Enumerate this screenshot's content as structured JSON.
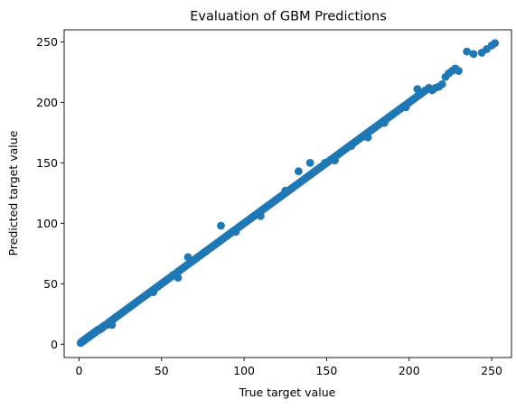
{
  "chart_data": {
    "type": "scatter",
    "title": "Evaluation of GBM Predictions",
    "xlabel": "True target value",
    "ylabel": "Predicted target value",
    "xlim": [
      -9,
      262
    ],
    "ylim": [
      -11,
      260
    ],
    "xticks": [
      0,
      50,
      100,
      150,
      200,
      250
    ],
    "yticks": [
      0,
      50,
      100,
      150,
      200,
      250
    ],
    "xtick_labels": [
      "0",
      "50",
      "100",
      "150",
      "200",
      "250"
    ],
    "ytick_labels": [
      "0",
      "50",
      "100",
      "150",
      "200",
      "250"
    ],
    "grid": false,
    "legend": "none",
    "marker_color": "#1f77b4",
    "points": {
      "x": [
        1,
        1.5,
        2,
        2.5,
        3,
        3.5,
        4,
        4.5,
        5,
        5.5,
        6,
        6.5,
        7,
        7.5,
        8,
        8.5,
        9,
        9.5,
        10,
        10.5,
        11,
        11.5,
        12,
        12.5,
        13,
        13.5,
        14,
        14.5,
        15,
        16,
        17,
        18,
        19,
        20,
        21,
        22,
        23,
        24,
        25,
        26,
        27,
        28,
        29,
        30,
        31,
        32,
        33,
        34,
        35,
        36,
        37,
        38,
        39,
        40,
        41,
        42,
        43,
        44,
        45,
        46,
        47,
        48,
        49,
        50,
        51,
        52,
        53,
        54,
        55,
        56,
        57,
        58,
        59,
        60,
        61,
        62,
        63,
        64,
        65,
        66,
        67,
        68,
        69,
        70,
        71,
        72,
        73,
        74,
        75,
        76,
        77,
        78,
        79,
        80,
        81,
        82,
        83,
        84,
        85,
        86,
        87,
        88,
        89,
        90,
        91,
        92,
        93,
        94,
        95,
        96,
        97,
        98,
        99,
        100,
        101,
        102,
        103,
        104,
        105,
        106,
        107,
        108,
        109,
        110,
        111,
        112,
        113,
        114,
        115,
        116,
        117,
        118,
        119,
        120,
        121,
        122,
        123,
        124,
        125,
        126,
        127,
        128,
        129,
        130,
        131,
        132,
        133,
        134,
        135,
        136,
        137,
        138,
        139,
        140,
        141,
        142,
        143,
        144,
        145,
        146,
        147,
        148,
        149,
        150,
        151,
        152,
        153,
        154,
        155,
        156,
        157,
        158,
        159,
        160,
        161,
        162,
        163,
        164,
        165,
        166,
        167,
        168,
        169,
        170,
        171,
        172,
        173,
        174,
        175,
        176,
        177,
        178,
        179,
        180,
        181,
        182,
        183,
        184,
        185,
        186,
        187,
        188,
        189,
        190,
        191,
        192,
        193,
        194,
        195,
        196,
        197,
        198,
        199,
        200,
        201,
        202,
        203,
        204,
        205,
        206,
        207,
        208,
        209,
        210,
        212,
        214,
        216,
        218,
        220,
        222,
        224,
        226,
        228,
        235,
        239,
        244,
        247,
        250,
        252,
        66,
        86,
        133,
        140,
        149,
        165,
        20,
        60,
        110,
        175,
        230,
        45,
        95,
        125,
        155,
        185,
        198,
        205
      ],
      "y": [
        1,
        2,
        2,
        3,
        3,
        4,
        4,
        5,
        5,
        6,
        6,
        7,
        7,
        8,
        8,
        9,
        9,
        10,
        10,
        11,
        11,
        12,
        12,
        12,
        13,
        13,
        14,
        14,
        15,
        16,
        16,
        18,
        19,
        20,
        21,
        22,
        23,
        24,
        25,
        26,
        27,
        28,
        29,
        30,
        31,
        32,
        33,
        34,
        35,
        36,
        37,
        38,
        39,
        40,
        41,
        42,
        43,
        44,
        45,
        46,
        47,
        48,
        49,
        50,
        51,
        52,
        53,
        54,
        55,
        56,
        57,
        58,
        58,
        60,
        61,
        62,
        63,
        64,
        65,
        66,
        67,
        68,
        69,
        70,
        71,
        72,
        73,
        74,
        75,
        76,
        77,
        78,
        79,
        80,
        81,
        82,
        83,
        84,
        85,
        86,
        87,
        88,
        89,
        90,
        91,
        92,
        93,
        94,
        95,
        96,
        97,
        98,
        99,
        100,
        101,
        102,
        103,
        104,
        105,
        106,
        107,
        108,
        109,
        110,
        111,
        112,
        113,
        114,
        115,
        116,
        117,
        118,
        119,
        120,
        121,
        122,
        123,
        124,
        125,
        126,
        127,
        128,
        129,
        130,
        131,
        132,
        133,
        134,
        135,
        136,
        137,
        138,
        139,
        140,
        141,
        142,
        143,
        144,
        145,
        146,
        147,
        148,
        149,
        150,
        151,
        152,
        153,
        154,
        155,
        156,
        157,
        158,
        159,
        160,
        161,
        162,
        163,
        164,
        165,
        166,
        167,
        168,
        169,
        170,
        171,
        172,
        173,
        174,
        175,
        176,
        177,
        178,
        179,
        180,
        181,
        182,
        183,
        184,
        185,
        186,
        187,
        188,
        189,
        190,
        191,
        192,
        193,
        194,
        195,
        196,
        197,
        198,
        199,
        200,
        201,
        202,
        203,
        204,
        205,
        206,
        207,
        208,
        209,
        210,
        212,
        210,
        212,
        213,
        215,
        221,
        224,
        226,
        228,
        242,
        240,
        241,
        244,
        247,
        249,
        72,
        98,
        143,
        150,
        150,
        164,
        16,
        55,
        106,
        171,
        226,
        43,
        93,
        127,
        152,
        183,
        196,
        211
      ]
    }
  }
}
